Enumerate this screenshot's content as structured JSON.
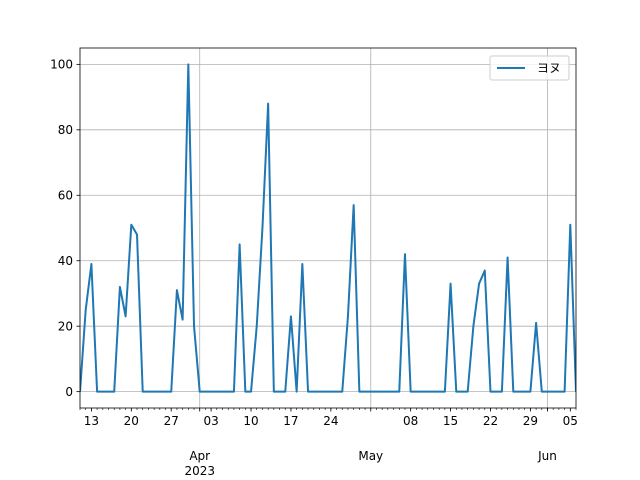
{
  "chart_data": {
    "type": "line",
    "title": "",
    "xlabel": "",
    "ylabel": "",
    "x_start": "2023-03-11",
    "x_end": "2023-06-06",
    "ylim": [
      -5,
      105
    ],
    "y_ticks": [
      0,
      20,
      40,
      60,
      80,
      100
    ],
    "x_minor_ticks": [
      {
        "date": "2023-03-13",
        "label": "13"
      },
      {
        "date": "2023-03-20",
        "label": "20"
      },
      {
        "date": "2023-03-27",
        "label": "27"
      },
      {
        "date": "2023-04-03",
        "label": "03"
      },
      {
        "date": "2023-04-10",
        "label": "10"
      },
      {
        "date": "2023-04-17",
        "label": "17"
      },
      {
        "date": "2023-04-24",
        "label": "24"
      },
      {
        "date": "2023-05-08",
        "label": "08"
      },
      {
        "date": "2023-05-15",
        "label": "15"
      },
      {
        "date": "2023-05-22",
        "label": "22"
      },
      {
        "date": "2023-05-29",
        "label": "29"
      },
      {
        "date": "2023-06-05",
        "label": "05"
      }
    ],
    "x_major_ticks": [
      {
        "date": "2023-04-01",
        "label": "Apr",
        "sublabel": "2023"
      },
      {
        "date": "2023-05-01",
        "label": "May",
        "sublabel": ""
      },
      {
        "date": "2023-06-01",
        "label": "Jun",
        "sublabel": ""
      }
    ],
    "grid": true,
    "legend_position": "top-right",
    "series": [
      {
        "name": "ヨヌ",
        "color": "#1f77b4",
        "points": [
          [
            "2023-03-11",
            0
          ],
          [
            "2023-03-12",
            25
          ],
          [
            "2023-03-13",
            39
          ],
          [
            "2023-03-14",
            0
          ],
          [
            "2023-03-15",
            0
          ],
          [
            "2023-03-16",
            0
          ],
          [
            "2023-03-17",
            0
          ],
          [
            "2023-03-18",
            32
          ],
          [
            "2023-03-19",
            23
          ],
          [
            "2023-03-20",
            51
          ],
          [
            "2023-03-21",
            48
          ],
          [
            "2023-03-22",
            0
          ],
          [
            "2023-03-23",
            0
          ],
          [
            "2023-03-24",
            0
          ],
          [
            "2023-03-25",
            0
          ],
          [
            "2023-03-26",
            0
          ],
          [
            "2023-03-27",
            0
          ],
          [
            "2023-03-28",
            31
          ],
          [
            "2023-03-29",
            22
          ],
          [
            "2023-03-30",
            100
          ],
          [
            "2023-03-31",
            20
          ],
          [
            "2023-04-01",
            0
          ],
          [
            "2023-04-02",
            0
          ],
          [
            "2023-04-03",
            0
          ],
          [
            "2023-04-04",
            0
          ],
          [
            "2023-04-05",
            0
          ],
          [
            "2023-04-06",
            0
          ],
          [
            "2023-04-07",
            0
          ],
          [
            "2023-04-08",
            45
          ],
          [
            "2023-04-09",
            0
          ],
          [
            "2023-04-10",
            0
          ],
          [
            "2023-04-11",
            20
          ],
          [
            "2023-04-12",
            50
          ],
          [
            "2023-04-13",
            88
          ],
          [
            "2023-04-14",
            0
          ],
          [
            "2023-04-15",
            0
          ],
          [
            "2023-04-16",
            0
          ],
          [
            "2023-04-17",
            23
          ],
          [
            "2023-04-18",
            0
          ],
          [
            "2023-04-19",
            39
          ],
          [
            "2023-04-20",
            0
          ],
          [
            "2023-04-21",
            0
          ],
          [
            "2023-04-22",
            0
          ],
          [
            "2023-04-23",
            0
          ],
          [
            "2023-04-24",
            0
          ],
          [
            "2023-04-25",
            0
          ],
          [
            "2023-04-26",
            0
          ],
          [
            "2023-04-27",
            23
          ],
          [
            "2023-04-28",
            57
          ],
          [
            "2023-04-29",
            0
          ],
          [
            "2023-04-30",
            0
          ],
          [
            "2023-05-01",
            0
          ],
          [
            "2023-05-02",
            0
          ],
          [
            "2023-05-03",
            0
          ],
          [
            "2023-05-04",
            0
          ],
          [
            "2023-05-05",
            0
          ],
          [
            "2023-05-06",
            0
          ],
          [
            "2023-05-07",
            42
          ],
          [
            "2023-05-08",
            0
          ],
          [
            "2023-05-09",
            0
          ],
          [
            "2023-05-10",
            0
          ],
          [
            "2023-05-11",
            0
          ],
          [
            "2023-05-12",
            0
          ],
          [
            "2023-05-13",
            0
          ],
          [
            "2023-05-14",
            0
          ],
          [
            "2023-05-15",
            33
          ],
          [
            "2023-05-16",
            0
          ],
          [
            "2023-05-17",
            0
          ],
          [
            "2023-05-18",
            0
          ],
          [
            "2023-05-19",
            20
          ],
          [
            "2023-05-20",
            33
          ],
          [
            "2023-05-21",
            37
          ],
          [
            "2023-05-22",
            0
          ],
          [
            "2023-05-23",
            0
          ],
          [
            "2023-05-24",
            0
          ],
          [
            "2023-05-25",
            41
          ],
          [
            "2023-05-26",
            0
          ],
          [
            "2023-05-27",
            0
          ],
          [
            "2023-05-28",
            0
          ],
          [
            "2023-05-29",
            0
          ],
          [
            "2023-05-30",
            21
          ],
          [
            "2023-05-31",
            0
          ],
          [
            "2023-06-01",
            0
          ],
          [
            "2023-06-02",
            0
          ],
          [
            "2023-06-03",
            0
          ],
          [
            "2023-06-04",
            0
          ],
          [
            "2023-06-05",
            51
          ],
          [
            "2023-06-06",
            0
          ]
        ]
      }
    ]
  }
}
